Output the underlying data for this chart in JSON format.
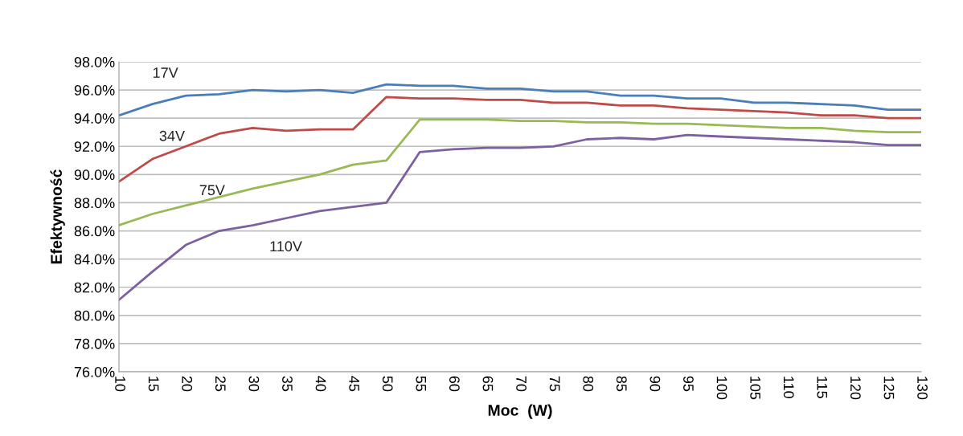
{
  "chart_data": {
    "type": "line",
    "xlabel": "Moc  (W)",
    "ylabel": "Efektywność",
    "x": [
      10,
      15,
      20,
      25,
      30,
      35,
      40,
      45,
      50,
      55,
      60,
      65,
      70,
      75,
      80,
      85,
      90,
      95,
      100,
      105,
      110,
      115,
      120,
      125,
      130
    ],
    "series": [
      {
        "name": "17V",
        "color": "#4a7ebb",
        "values": [
          94.2,
          95.0,
          95.6,
          95.7,
          96.0,
          95.9,
          96.0,
          95.8,
          96.4,
          96.3,
          96.3,
          96.1,
          96.1,
          95.9,
          95.9,
          95.6,
          95.6,
          95.4,
          95.4,
          95.1,
          95.1,
          95.0,
          94.9,
          94.6,
          94.6
        ]
      },
      {
        "name": "34V",
        "color": "#be4b48",
        "values": [
          89.5,
          91.1,
          92.0,
          92.9,
          93.3,
          93.1,
          93.2,
          93.2,
          95.5,
          95.4,
          95.4,
          95.3,
          95.3,
          95.1,
          95.1,
          94.9,
          94.9,
          94.7,
          94.6,
          94.5,
          94.4,
          94.2,
          94.2,
          94.0,
          94.0
        ]
      },
      {
        "name": "75V",
        "color": "#98b954",
        "values": [
          86.4,
          87.2,
          87.8,
          88.4,
          89.0,
          89.5,
          90.0,
          90.7,
          91.0,
          93.9,
          93.9,
          93.9,
          93.8,
          93.8,
          93.7,
          93.7,
          93.6,
          93.6,
          93.5,
          93.4,
          93.3,
          93.3,
          93.1,
          93.0,
          93.0
        ]
      },
      {
        "name": "110V",
        "color": "#7d60a0",
        "values": [
          81.1,
          83.1,
          85.0,
          86.0,
          86.4,
          86.9,
          87.4,
          87.7,
          88.0,
          91.6,
          91.8,
          91.9,
          91.9,
          92.0,
          92.5,
          92.6,
          92.5,
          92.8,
          92.7,
          92.6,
          92.5,
          92.4,
          92.3,
          92.1,
          92.1
        ]
      }
    ],
    "xlim": [
      10,
      130
    ],
    "xticks": [
      10,
      15,
      20,
      25,
      30,
      35,
      40,
      45,
      50,
      55,
      60,
      65,
      70,
      75,
      80,
      85,
      90,
      95,
      100,
      105,
      110,
      115,
      120,
      125,
      130
    ],
    "ylim": [
      76,
      98
    ],
    "yticks": [
      {
        "value": 76,
        "label": "76.0%"
      },
      {
        "value": 78,
        "label": "78.0%"
      },
      {
        "value": 80,
        "label": "80.0%"
      },
      {
        "value": 82,
        "label": "82.0%"
      },
      {
        "value": 84,
        "label": "84.0%"
      },
      {
        "value": 86,
        "label": "86.0%"
      },
      {
        "value": 88,
        "label": "88.0%"
      },
      {
        "value": 90,
        "label": "90.0%"
      },
      {
        "value": 92,
        "label": "92.0%"
      },
      {
        "value": 94,
        "label": "94.0%"
      },
      {
        "value": 96,
        "label": "96.0%"
      },
      {
        "value": 98,
        "label": "98.0%"
      }
    ],
    "grid": "y",
    "legend": false,
    "marker": "none",
    "line_style": "solid"
  }
}
